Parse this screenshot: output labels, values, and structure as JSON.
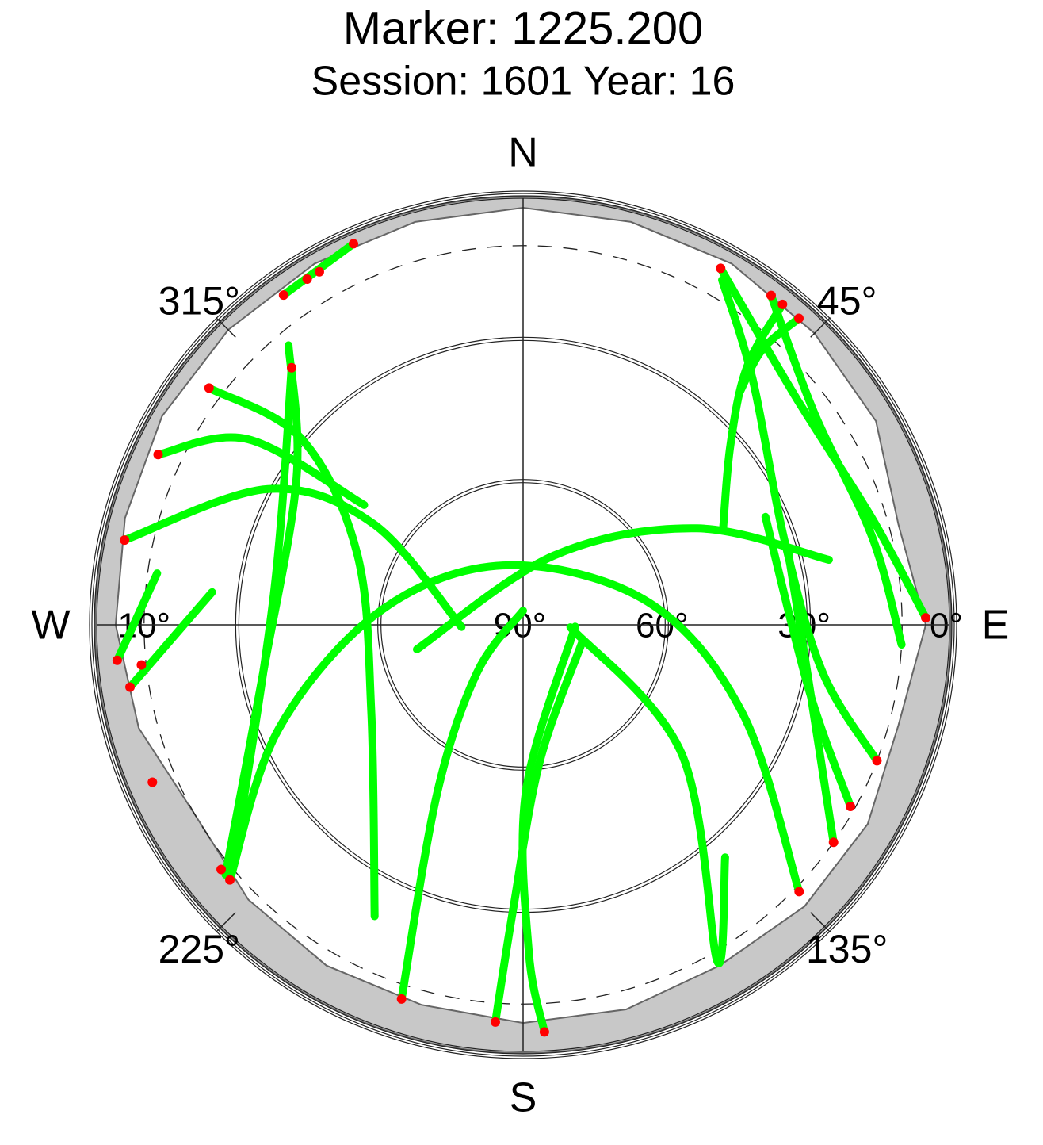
{
  "chart_data": {
    "type": "polar",
    "title": "Marker: 1225.200",
    "subtitle": "Session: 1601 Year: 16",
    "cardinals": [
      {
        "value": 0,
        "label": "N"
      },
      {
        "value": 90,
        "label": "E"
      },
      {
        "value": 180,
        "label": "S"
      },
      {
        "value": 270,
        "label": "W"
      }
    ],
    "azticks": [
      {
        "value": 45,
        "label": "45°"
      },
      {
        "value": 135,
        "label": "135°"
      },
      {
        "value": 225,
        "label": "225°"
      },
      {
        "value": 315,
        "label": "315°"
      }
    ],
    "elticks": [
      {
        "value": 90,
        "label": "90°"
      },
      {
        "value": 60,
        "label": "60°"
      },
      {
        "value": 30,
        "label": "30°"
      },
      {
        "value": 10,
        "label": "10°",
        "style": "dashed"
      },
      {
        "value": 0,
        "label": "0°"
      }
    ],
    "ellim": [
      90,
      0
    ],
    "horizon": {
      "color": "#c8c8c8",
      "az": [
        0,
        15,
        30,
        45,
        60,
        75,
        90,
        105,
        120,
        135,
        150,
        165,
        180,
        195,
        210,
        225,
        240,
        255,
        270,
        285,
        300,
        315,
        330,
        345
      ],
      "el": [
        2,
        2,
        2,
        3,
        4,
        8,
        5,
        8,
        6,
        6,
        7,
        6,
        6,
        7,
        7,
        8,
        10,
        6,
        4,
        3,
        2,
        2,
        2,
        2
      ]
    },
    "series": [
      {
        "color": "#00ff00",
        "mode": "line",
        "az": [
          29,
          50,
          73,
          89
        ],
        "el": [
          4,
          15,
          13,
          5
        ]
      },
      {
        "color": "#00ff00",
        "mode": "line",
        "az": [
          37,
          54,
          76,
          93
        ],
        "el": [
          3,
          14,
          14,
          10
        ]
      },
      {
        "color": "#00ff00",
        "mode": "line",
        "az": [
          39,
          41,
          49,
          64
        ],
        "el": [
          3,
          18,
          32,
          43
        ]
      },
      {
        "color": "#00ff00",
        "mode": "line",
        "az": [
          42,
          41,
          43
        ],
        "el": [
          3,
          13,
          23
        ]
      },
      {
        "color": "#00ff00",
        "mode": "line",
        "az": [
          30,
          43,
          72,
          99,
          111
        ],
        "el": [
          6,
          19,
          32,
          26,
          10
        ]
      },
      {
        "color": "#00ff00",
        "mode": "line",
        "az": [
          75,
          100,
          125
        ],
        "el": [
          32,
          29,
          10
        ]
      },
      {
        "color": "#00ff00",
        "mode": "line",
        "az": [
          66,
          103,
          119
        ],
        "el": [
          34,
          28,
          11
        ]
      },
      {
        "color": "#00ff00",
        "mode": "line",
        "az": [
          257,
          24,
          61,
          78
        ],
        "el": [
          67,
          74,
          48,
          24
        ]
      },
      {
        "color": "#00ff00",
        "mode": "line",
        "az": [
          229,
          247,
          276,
          345,
          80,
          112,
          134
        ],
        "el": [
          8,
          34,
          60,
          77,
          63,
          40,
          9
        ]
      },
      {
        "color": "#00ff00",
        "mode": "line",
        "az": [
          282,
          298,
          304,
          268
        ],
        "el": [
          4,
          29,
          52,
          77
        ]
      },
      {
        "color": "#00ff00",
        "mode": "line",
        "az": [
          295,
          304,
          307
        ],
        "el": [
          5,
          20,
          48
        ]
      },
      {
        "color": "#00ff00",
        "mode": "line",
        "az": [
          307,
          310,
          293,
          240,
          207
        ],
        "el": [
          7,
          29,
          52,
          53,
          21
        ]
      },
      {
        "color": "#00ff00",
        "mode": "line",
        "az": [
          320,
          303,
          259,
          230
        ],
        "el": [
          13,
          33,
          34,
          8
        ]
      },
      {
        "color": "#00ff00",
        "mode": "line",
        "az": [
          318,
          277,
          230
        ],
        "el": [
          17,
          37,
          10
        ]
      },
      {
        "color": "#00ff00",
        "mode": "line",
        "az": [
          0,
          224,
          207,
          198
        ],
        "el": [
          87,
          76,
          50,
          7
        ]
      },
      {
        "color": "#00ff00",
        "mode": "line",
        "az": [
          106,
          173,
          182,
          184
        ],
        "el": [
          77,
          61,
          30,
          6
        ]
      },
      {
        "color": "#00ff00",
        "mode": "line",
        "az": [
          92,
          179,
          179,
          177
        ],
        "el": [
          79,
          55,
          21,
          4
        ]
      },
      {
        "color": "#00ff00",
        "mode": "line",
        "az": [
          93,
          129,
          150,
          139
        ],
        "el": [
          80,
          47,
          8,
          25
        ]
      },
      {
        "color": "#00ff00",
        "mode": "line",
        "az": [
          278,
          265
        ],
        "el": [
          12,
          4
        ]
      },
      {
        "color": "#00ff00",
        "mode": "line",
        "az": [
          276,
          261
        ],
        "el": [
          24,
          6
        ]
      },
      {
        "color": "#00ff00",
        "mode": "line",
        "az": [
          324,
          336
        ],
        "el": [
          4,
          2
        ]
      },
      {
        "color": "#ff0000",
        "mode": "points",
        "az": [
          29,
          37,
          39,
          42,
          89,
          111,
          119,
          125,
          134,
          177,
          184,
          198,
          229,
          231,
          247,
          307,
          295,
          282,
          318,
          265,
          261,
          264,
          324,
          330,
          336,
          328
        ],
        "el": [
          4,
          3,
          3,
          3,
          5,
          10,
          11,
          10,
          9,
          4,
          6,
          7,
          8,
          8,
          5,
          7,
          5,
          4,
          17,
          4,
          6,
          9,
          4,
          4,
          2,
          4
        ]
      }
    ]
  }
}
